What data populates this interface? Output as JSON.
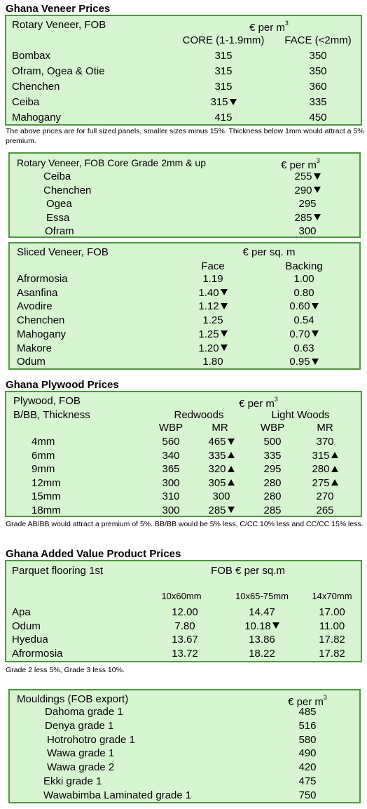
{
  "veneer": {
    "heading": "Ghana Veneer Prices",
    "rotary": {
      "title": "Rotary Veneer, FOB",
      "unit": "€ per m",
      "unit_sup": "3",
      "col_core": "CORE (1-1.9mm)",
      "col_face": "FACE (<2mm)",
      "rows": [
        {
          "name": "Bombax",
          "core": "315",
          "core_trend": "",
          "face": "350",
          "face_trend": ""
        },
        {
          "name": "Ofram, Ogea  & Otie",
          "core": "315",
          "core_trend": "",
          "face": "350",
          "face_trend": ""
        },
        {
          "name": "Chenchen",
          "core": "315",
          "core_trend": "",
          "face": "360",
          "face_trend": ""
        },
        {
          "name": "Ceiba",
          "core": "315",
          "core_trend": "down",
          "face": "335",
          "face_trend": ""
        },
        {
          "name": "Mahogany",
          "core": "415",
          "core_trend": "",
          "face": "450",
          "face_trend": ""
        }
      ],
      "note": "The above prices are for full sized panels, smaller sizes minus 15%. Thickness below 1mm would attract a 5% premium."
    },
    "rotary_core": {
      "title": "Rotary Veneer, FOB Core Grade 2mm & up",
      "unit": "€ per m",
      "unit_sup": "3",
      "rows": [
        {
          "name": "Ceiba",
          "value": "255",
          "trend": "down"
        },
        {
          "name": "Chenchen",
          "value": "290",
          "trend": "down"
        },
        {
          "name": "Ogea",
          "value": "295",
          "trend": ""
        },
        {
          "name": "Essa",
          "value": "285",
          "trend": "down"
        },
        {
          "name": "Ofram",
          "value": "300",
          "trend": ""
        }
      ]
    },
    "sliced": {
      "title": "Sliced Veneer, FOB",
      "unit": "€ per sq. m",
      "col_face": "Face",
      "col_backing": "Backing",
      "rows": [
        {
          "name": "Afrormosia",
          "face": "1.19",
          "face_trend": "",
          "backing": "1.00",
          "backing_trend": ""
        },
        {
          "name": "Asanfina",
          "face": "1.40",
          "face_trend": "down",
          "backing": "0.80",
          "backing_trend": ""
        },
        {
          "name": "Avodire",
          "face": "1.12",
          "face_trend": "down",
          "backing": "0.60",
          "backing_trend": "down"
        },
        {
          "name": "Chenchen",
          "face": "1.25",
          "face_trend": "",
          "backing": "0.54",
          "backing_trend": ""
        },
        {
          "name": "Mahogany",
          "face": "1.25",
          "face_trend": "down",
          "backing": "0.70",
          "backing_trend": "down"
        },
        {
          "name": "Makore",
          "face": "1.20",
          "face_trend": "down",
          "backing": "0.63",
          "backing_trend": ""
        },
        {
          "name": "Odum",
          "face": "1.80",
          "face_trend": "",
          "backing": "0.95",
          "backing_trend": "down"
        }
      ]
    }
  },
  "plywood": {
    "heading": "Ghana Plywood Prices",
    "title": "Plywood, FOB",
    "unit": "€ per m",
    "unit_sup": "3",
    "subtitle": "B/BB, Thickness",
    "group_red": "Redwoods",
    "group_light": "Light Woods",
    "col_wbp": "WBP",
    "col_mr": "MR",
    "rows": [
      {
        "name": "4mm",
        "rw": "560",
        "rw_t": "",
        "rm": "465",
        "rm_t": "down",
        "lw": "500",
        "lw_t": "",
        "lm": "370",
        "lm_t": ""
      },
      {
        "name": "6mm",
        "rw": "340",
        "rw_t": "",
        "rm": "335",
        "rm_t": "up",
        "lw": "335",
        "lw_t": "",
        "lm": "315",
        "lm_t": "up"
      },
      {
        "name": "9mm",
        "rw": "365",
        "rw_t": "",
        "rm": "320",
        "rm_t": "up",
        "lw": "295",
        "lw_t": "",
        "lm": "280",
        "lm_t": "up"
      },
      {
        "name": "12mm",
        "rw": "300",
        "rw_t": "",
        "rm": "305",
        "rm_t": "up",
        "lw": "280",
        "lw_t": "",
        "lm": "275",
        "lm_t": "up"
      },
      {
        "name": "15mm",
        "rw": "310",
        "rw_t": "",
        "rm": "300",
        "rm_t": "",
        "lw": "280",
        "lw_t": "",
        "lm": "270",
        "lm_t": ""
      },
      {
        "name": "18mm",
        "rw": "300",
        "rw_t": "",
        "rm": "285",
        "rm_t": "down",
        "lw": "285",
        "lw_t": "",
        "lm": "265",
        "lm_t": ""
      }
    ],
    "note": "Grade AB/BB would attract a premium of 5%. BB/BB would be 5% less, C/CC 10% less and CC/CC 15% less."
  },
  "added_value": {
    "heading": "Ghana Added Value Product Prices",
    "title": "Parquet flooring 1st",
    "unit": "FOB € per sq.m",
    "cols": [
      "10x60mm",
      "10x65-75mm",
      "14x70mm"
    ],
    "rows": [
      {
        "name": "Apa",
        "v1": "12.00",
        "v2": "14.47",
        "v2_t": "",
        "v3": "17.00"
      },
      {
        "name": "Odum",
        "v1": "7.80",
        "v2": "10.18",
        "v2_t": "down",
        "v3": "11.00"
      },
      {
        "name": "Hyedua",
        "v1": "13.67",
        "v2": "13.86",
        "v2_t": "",
        "v3": "17.82"
      },
      {
        "name": "Afrormosia",
        "v1": "13.72",
        "v2": "18.22",
        "v2_t": "",
        "v3": "17.82"
      }
    ],
    "note": "Grade 2 less 5%, Grade 3 less 10%."
  },
  "mouldings": {
    "title": "Mouldings (FOB export)",
    "unit": "€ per m",
    "unit_sup": "3",
    "rows": [
      {
        "name": "Dahoma grade 1",
        "value": "485"
      },
      {
        "name": "Denya grade 1",
        "value": "516"
      },
      {
        "name": "Hotrohotro grade 1",
        "value": "580"
      },
      {
        "name": "Wawa grade 1",
        "value": "490"
      },
      {
        "name": "Wawa grade 2",
        "value": "420"
      },
      {
        "name": "Ekki grade 1",
        "value": "475"
      },
      {
        "name": "Wawabimba Laminated grade 1",
        "value": "750"
      }
    ]
  },
  "icons": {
    "down": "arrow-down-icon",
    "up": "arrow-up-icon"
  }
}
